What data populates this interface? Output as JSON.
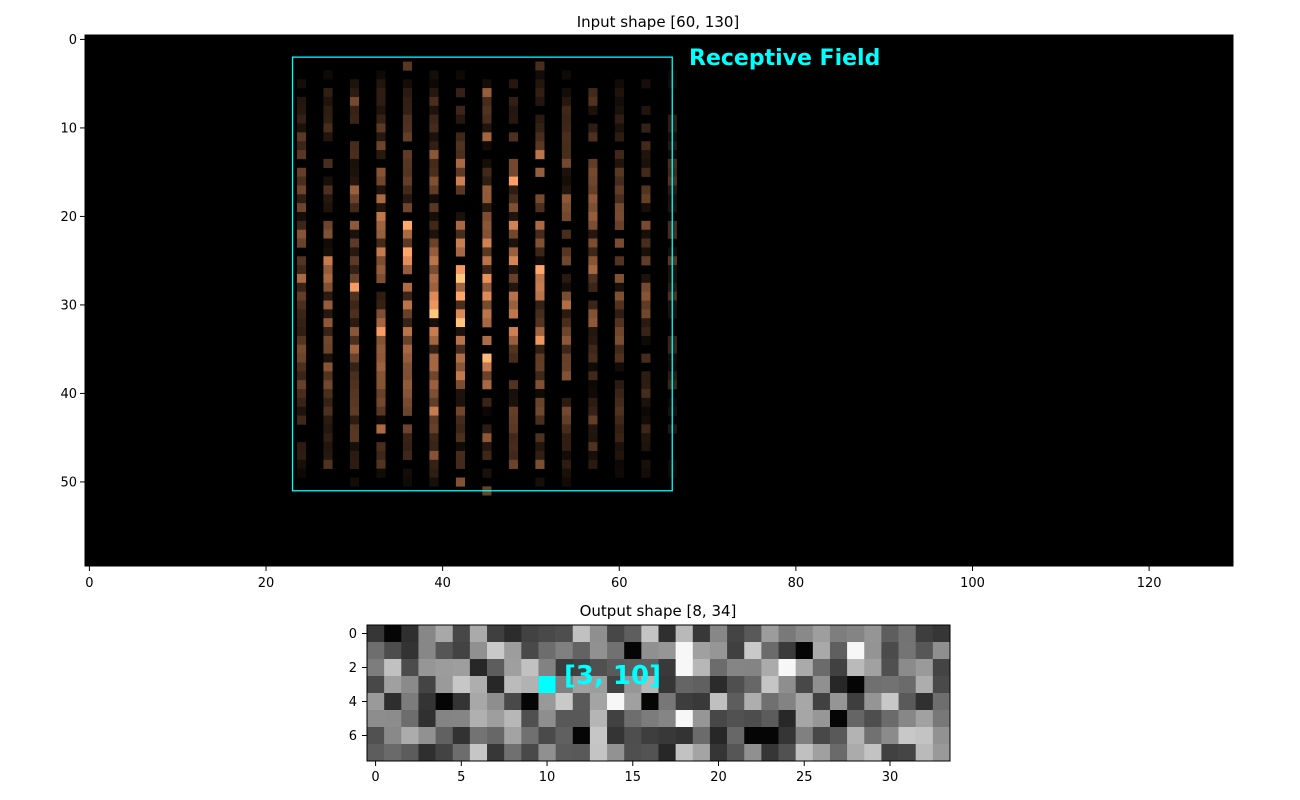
{
  "chart_data": [
    {
      "type": "heatmap",
      "title": "Input shape [60, 130]",
      "shape": [
        60,
        130
      ],
      "colormap": "copper",
      "xticks": [
        0,
        20,
        40,
        60,
        80,
        100,
        120
      ],
      "yticks": [
        0,
        10,
        20,
        30,
        40,
        50
      ],
      "xlim": [
        0,
        130
      ],
      "ylim": [
        0,
        60
      ],
      "activity": {
        "columns_with_activity": [
          24,
          27,
          30,
          33,
          36,
          39,
          42,
          45,
          48,
          51,
          54,
          57,
          60,
          63,
          66
        ],
        "peak_column": 42,
        "rows_with_activity": [
          3,
          51
        ]
      },
      "receptive_field": {
        "label": "Receptive Field",
        "x_range": [
          23.5,
          66.5
        ],
        "y_range": [
          2.5,
          51.5
        ],
        "color": "#00ffff"
      }
    },
    {
      "type": "heatmap",
      "title": "Output shape [8, 34]",
      "shape": [
        8,
        34
      ],
      "colormap": "gray",
      "xticks": [
        0,
        5,
        10,
        15,
        20,
        25,
        30
      ],
      "yticks": [
        0,
        2,
        4,
        6
      ],
      "highlight": {
        "label": "[3, 10]",
        "row": 3,
        "col": 10,
        "color": "#00ffff"
      }
    }
  ]
}
